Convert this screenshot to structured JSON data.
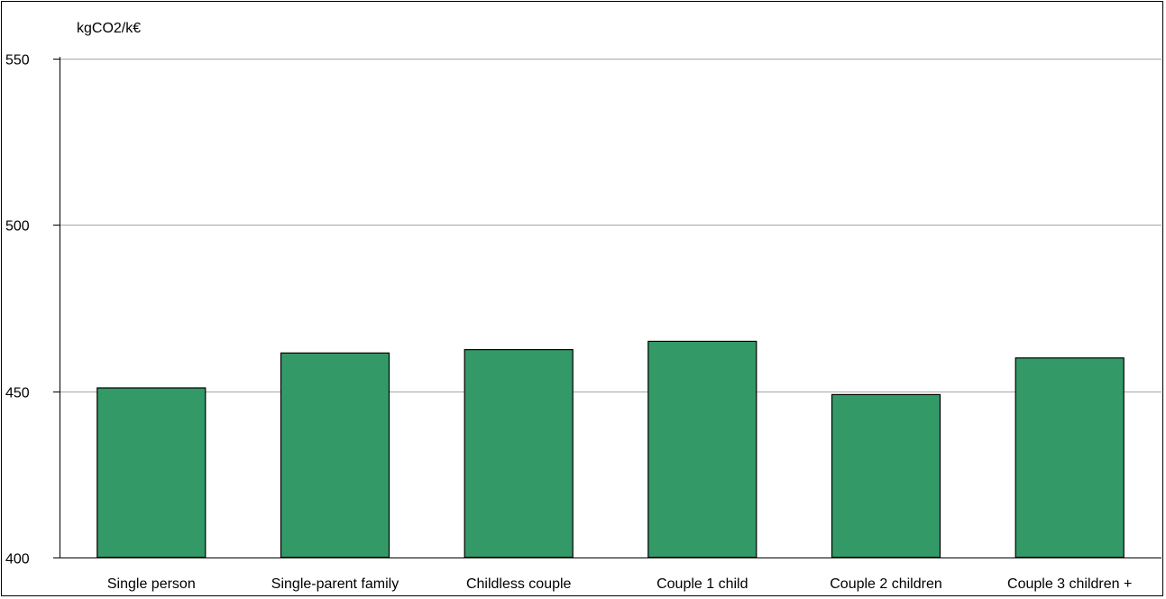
{
  "chart_data": {
    "type": "bar",
    "unit_label": "kgCO2/k€",
    "categories": [
      "Single person",
      "Single-parent family",
      "Childless couple",
      "Couple 1 child",
      "Couple 2 children",
      "Couple 3 children +"
    ],
    "values": [
      451,
      461.5,
      462.5,
      465,
      449,
      460
    ],
    "ylim": [
      400,
      550
    ],
    "yticks": [
      400,
      450,
      500,
      550
    ],
    "grid": true,
    "bar_color": "#339966",
    "bar_edge_color": "#000000",
    "grid_color": "#a6a6a6"
  }
}
